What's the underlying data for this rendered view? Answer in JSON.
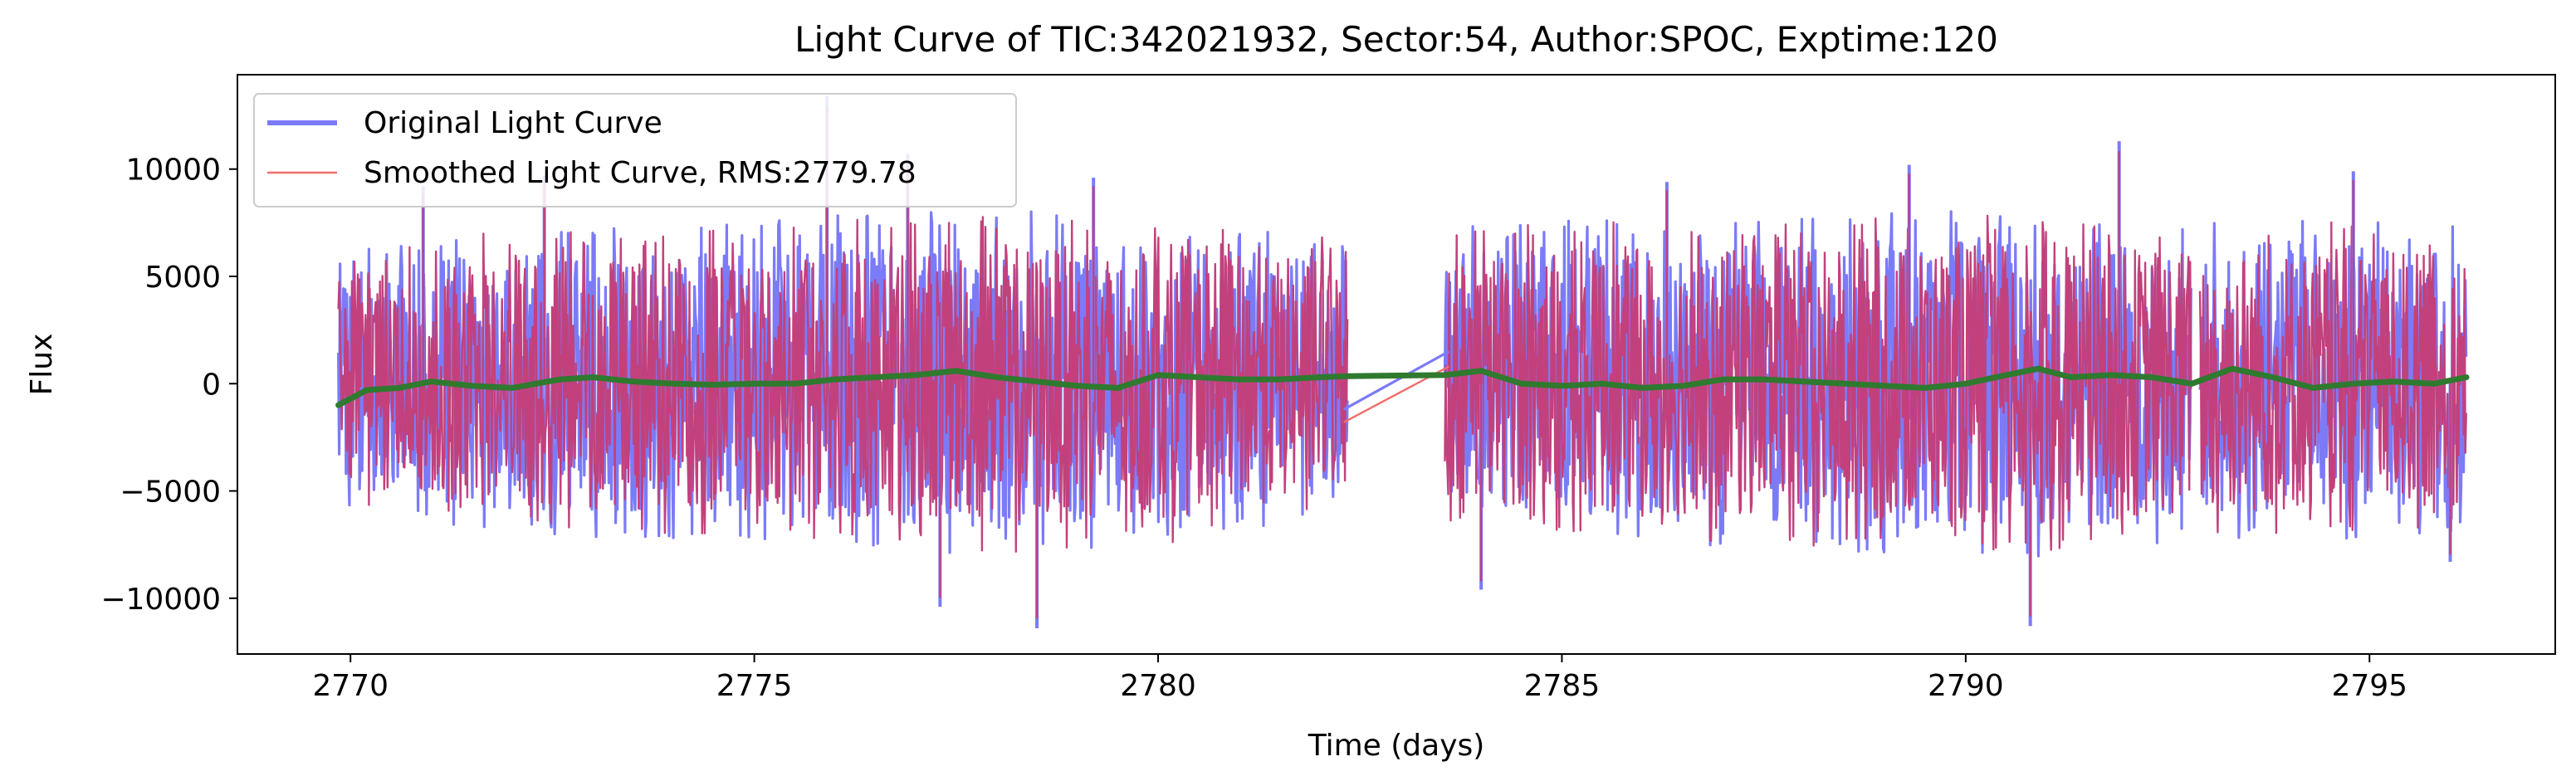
{
  "chart_data": {
    "type": "line",
    "title": "Light Curve of TIC:342021932, Sector:54, Author:SPOC, Exptime:120",
    "xlabel": "Time (days)",
    "ylabel": "Flux",
    "xlim": [
      2768.6,
      2797.3
    ],
    "ylim": [
      -12600,
      14400
    ],
    "x_ticks": [
      2770,
      2775,
      2780,
      2785,
      2790,
      2795
    ],
    "x_tick_labels": [
      "2770",
      "2775",
      "2780",
      "2785",
      "2790",
      "2795"
    ],
    "y_ticks": [
      -10000,
      -5000,
      0,
      5000,
      10000
    ],
    "y_tick_labels": [
      "−10000",
      "−5000",
      "0",
      "5000",
      "10000"
    ],
    "grid": false,
    "legend": {
      "placement": "upper-left"
    },
    "segments": [
      {
        "start": 2769.85,
        "end": 2782.35
      },
      {
        "start": 2783.55,
        "end": 2792.8
      },
      {
        "start": 2792.9,
        "end": 2796.2
      }
    ],
    "series": [
      {
        "name": "Original Light Curve",
        "color": "#7b7bf7",
        "style": "line",
        "envelope_upper": [
          [
            2769.9,
            5200
          ],
          [
            2772,
            6200
          ],
          [
            2774,
            6000
          ],
          [
            2776,
            6600
          ],
          [
            2778,
            6800
          ],
          [
            2780,
            6300
          ],
          [
            2782.3,
            6000
          ],
          [
            2783.6,
            6200
          ],
          [
            2786,
            6600
          ],
          [
            2788,
            6400
          ],
          [
            2790,
            6900
          ],
          [
            2792.7,
            6600
          ],
          [
            2793,
            6800
          ],
          [
            2796.2,
            6200
          ]
        ],
        "envelope_lower": [
          [
            2769.9,
            -4800
          ],
          [
            2772,
            -6000
          ],
          [
            2774,
            -6000
          ],
          [
            2776,
            -6300
          ],
          [
            2778,
            -6800
          ],
          [
            2780,
            -6500
          ],
          [
            2782.3,
            -5200
          ],
          [
            2783.6,
            -5600
          ],
          [
            2786,
            -6400
          ],
          [
            2788,
            -6500
          ],
          [
            2790,
            -6900
          ],
          [
            2792.7,
            -6400
          ],
          [
            2793,
            -6400
          ],
          [
            2796.2,
            -5800
          ]
        ],
        "spikes": [
          [
            2770.9,
            9200
          ],
          [
            2772.4,
            9700
          ],
          [
            2775.9,
            13400
          ],
          [
            2776.9,
            10700
          ],
          [
            2779.2,
            9600
          ],
          [
            2786.3,
            9400
          ],
          [
            2789.3,
            10200
          ],
          [
            2791.9,
            11300
          ],
          [
            2794.8,
            9900
          ],
          [
            2778.5,
            -11400
          ],
          [
            2777.3,
            -10400
          ],
          [
            2784.0,
            -9600
          ],
          [
            2790.8,
            -11300
          ],
          [
            2796.0,
            -8300
          ]
        ],
        "gap_bridge": [
          [
            2782.3,
            -1200
          ],
          [
            2783.6,
            1500
          ]
        ]
      },
      {
        "name": "Smoothed Light Curve, RMS:2779.78",
        "color": "#f26d6d",
        "style": "line",
        "gap_bridge": [
          [
            2782.3,
            -1800
          ],
          [
            2783.6,
            800
          ]
        ]
      },
      {
        "name": "",
        "color": "#2f7a2f",
        "style": "line",
        "points": [
          [
            2769.85,
            -1000
          ],
          [
            2770.2,
            -300
          ],
          [
            2770.6,
            -200
          ],
          [
            2771.0,
            100
          ],
          [
            2771.5,
            -100
          ],
          [
            2772.0,
            -200
          ],
          [
            2772.6,
            200
          ],
          [
            2773.0,
            300
          ],
          [
            2773.5,
            100
          ],
          [
            2774.0,
            0
          ],
          [
            2774.5,
            -50
          ],
          [
            2775.0,
            0
          ],
          [
            2775.5,
            0
          ],
          [
            2776.0,
            200
          ],
          [
            2776.5,
            300
          ],
          [
            2777.0,
            400
          ],
          [
            2777.5,
            600
          ],
          [
            2778.0,
            300
          ],
          [
            2778.5,
            100
          ],
          [
            2779.0,
            -100
          ],
          [
            2779.5,
            -200
          ],
          [
            2780.0,
            400
          ],
          [
            2780.5,
            300
          ],
          [
            2781.0,
            200
          ],
          [
            2781.5,
            200
          ],
          [
            2782.0,
            300
          ],
          [
            2782.35,
            350
          ],
          [
            2783.55,
            400
          ],
          [
            2784.0,
            600
          ],
          [
            2784.5,
            0
          ],
          [
            2785.0,
            -100
          ],
          [
            2785.5,
            0
          ],
          [
            2786.0,
            -200
          ],
          [
            2786.5,
            -100
          ],
          [
            2787.0,
            200
          ],
          [
            2787.5,
            200
          ],
          [
            2788.0,
            100
          ],
          [
            2788.5,
            0
          ],
          [
            2789.0,
            -100
          ],
          [
            2789.5,
            -200
          ],
          [
            2790.0,
            0
          ],
          [
            2790.5,
            400
          ],
          [
            2790.9,
            700
          ],
          [
            2791.3,
            300
          ],
          [
            2791.8,
            400
          ],
          [
            2792.3,
            300
          ],
          [
            2792.8,
            0
          ],
          [
            2793.3,
            700
          ],
          [
            2793.8,
            300
          ],
          [
            2794.3,
            -200
          ],
          [
            2794.8,
            0
          ],
          [
            2795.3,
            100
          ],
          [
            2795.8,
            0
          ],
          [
            2796.2,
            300
          ]
        ]
      }
    ],
    "overlap_color": "#c2417d"
  }
}
